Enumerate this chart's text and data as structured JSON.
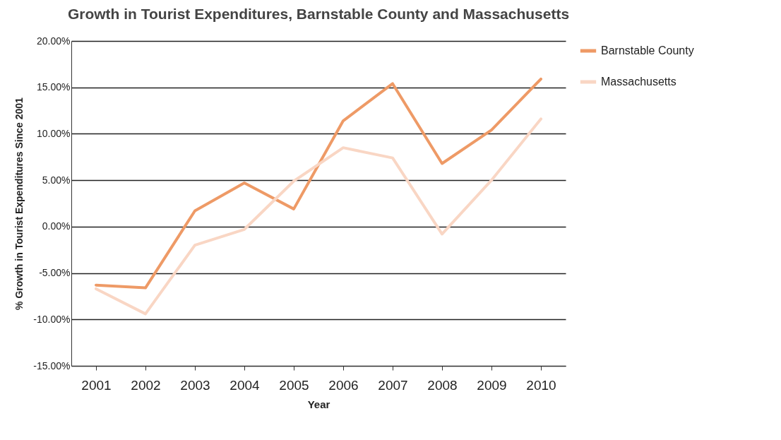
{
  "chart_data": {
    "type": "line",
    "title": "Growth in Tourist Expenditures, Barnstable County and Massachusetts",
    "xlabel": "Year",
    "ylabel": "% Growth in Tourist Expenditures Since 2001",
    "categories": [
      "2001",
      "2002",
      "2003",
      "2004",
      "2005",
      "2006",
      "2007",
      "2008",
      "2009",
      "2010"
    ],
    "series": [
      {
        "name": "Barnstable County",
        "color": "#ee9a66",
        "values": [
          -6.3,
          -6.6,
          1.7,
          4.7,
          1.9,
          11.4,
          15.4,
          6.8,
          10.4,
          15.9
        ]
      },
      {
        "name": "Massachusetts",
        "color": "#f9d6c4",
        "values": [
          -6.7,
          -9.4,
          -2.0,
          -0.3,
          4.9,
          8.5,
          7.4,
          -0.8,
          5.0,
          11.6
        ]
      }
    ],
    "ylim": [
      -15,
      20
    ],
    "yticks": [
      {
        "value": -15,
        "label": "-15.00%"
      },
      {
        "value": -10,
        "label": "-10.00%"
      },
      {
        "value": -5,
        "label": "-5.00%"
      },
      {
        "value": 0,
        "label": "0.00%"
      },
      {
        "value": 5,
        "label": "5.00%"
      },
      {
        "value": 10,
        "label": "10.00%"
      },
      {
        "value": 15,
        "label": "15.00%"
      },
      {
        "value": 20,
        "label": "20.00%"
      }
    ],
    "grid": "y",
    "legend": "right",
    "line_style": "solid"
  }
}
